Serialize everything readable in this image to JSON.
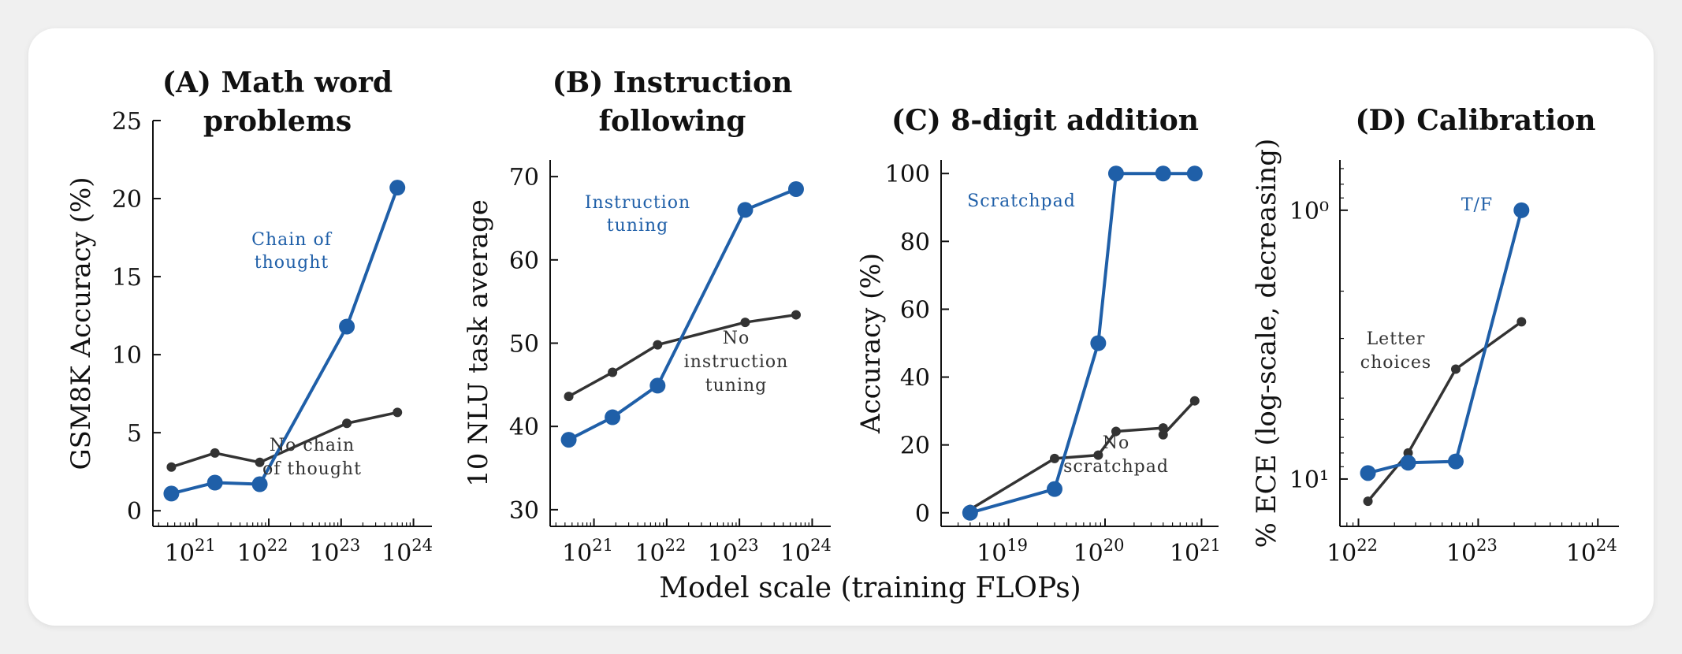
{
  "xlabel": "Model scale (training FLOPs)",
  "chart_data": [
    {
      "type": "line",
      "title": "(A) Math word problems",
      "title_lines": [
        "(A) Math word",
        "problems"
      ],
      "ylabel": "GSM8K Accuracy (%)",
      "xscale": "log",
      "xlim": [
        2.5e+20,
        1.8e+24
      ],
      "ylim": [
        -1,
        25
      ],
      "yticks": [
        0,
        5,
        10,
        15,
        20,
        25
      ],
      "ytick_labels": [
        "0",
        "5",
        "10",
        "15",
        "20",
        "25"
      ],
      "xtick_exps": [
        "21",
        "22",
        "23",
        "24"
      ],
      "series": [
        {
          "name": "Chain of thought",
          "label_lines": [
            "Chain of",
            "thought"
          ],
          "color": "#1f5fa8",
          "x": [
            4.5e+20,
            1.8e+21,
            7.5e+21,
            1.2e+23,
            6e+23
          ],
          "y": [
            1.1,
            1.8,
            1.7,
            11.8,
            20.7
          ]
        },
        {
          "name": "No chain of thought",
          "label_lines": [
            "No chain",
            "of thought"
          ],
          "color": "#333333",
          "x": [
            4.5e+20,
            1.8e+21,
            7.5e+21,
            1.2e+23,
            6e+23
          ],
          "y": [
            2.8,
            3.7,
            3.1,
            5.6,
            6.3
          ]
        }
      ]
    },
    {
      "type": "line",
      "title": "(B) Instruction following",
      "title_lines": [
        "(B) Instruction",
        "following"
      ],
      "ylabel": "10 NLU task average",
      "xscale": "log",
      "xlim": [
        2.5e+20,
        1.8e+24
      ],
      "ylim": [
        28,
        72
      ],
      "yticks": [
        30,
        40,
        50,
        60,
        70
      ],
      "ytick_labels": [
        "30",
        "40",
        "50",
        "60",
        "70"
      ],
      "xtick_exps": [
        "21",
        "22",
        "23",
        "24"
      ],
      "series": [
        {
          "name": "Instruction tuning",
          "label_lines": [
            "Instruction",
            "tuning"
          ],
          "color": "#1f5fa8",
          "x": [
            4.5e+20,
            1.8e+21,
            7.5e+21,
            1.2e+23,
            6e+23
          ],
          "y": [
            38.4,
            41.1,
            44.9,
            66.0,
            68.5
          ]
        },
        {
          "name": "No instruction tuning",
          "label_lines": [
            "No",
            "instruction",
            "tuning"
          ],
          "color": "#333333",
          "x": [
            4.5e+20,
            1.8e+21,
            7.5e+21,
            1.2e+23,
            6e+23
          ],
          "y": [
            43.6,
            46.5,
            49.8,
            52.5,
            53.4
          ]
        }
      ]
    },
    {
      "type": "line",
      "title": "(C) 8-digit addition",
      "title_lines": [
        "(C) 8-digit addition"
      ],
      "ylabel": "Accuracy (%)",
      "xscale": "log",
      "xlim": [
        2e+18,
        1.5e+21
      ],
      "ylim": [
        -4,
        104
      ],
      "yticks": [
        0,
        20,
        40,
        60,
        80,
        100
      ],
      "ytick_labels": [
        "0",
        "20",
        "40",
        "60",
        "80",
        "100"
      ],
      "xtick_exps": [
        "19",
        "20",
        "21"
      ],
      "series": [
        {
          "name": "Scratchpad",
          "label_lines": [
            "Scratchpad"
          ],
          "color": "#1f5fa8",
          "x": [
            4e+18,
            3e+19,
            8.5e+19,
            1.3e+20,
            4e+20,
            8.5e+20
          ],
          "y": [
            0,
            7,
            50,
            100,
            100,
            100
          ]
        },
        {
          "name": "No scratchpad",
          "label_lines": [
            "No",
            "scratchpad"
          ],
          "color": "#333333",
          "x": [
            4e+18,
            3e+19,
            8.5e+19,
            1.3e+20,
            4e+20,
            4e+20,
            8.5e+20
          ],
          "y": [
            1,
            16,
            17,
            24,
            25,
            23,
            33
          ]
        }
      ]
    },
    {
      "type": "line",
      "title": "(D) Calibration",
      "title_lines": [
        "(D) Calibration"
      ],
      "ylabel": "% ECE (log-scale, decreasing)",
      "xscale": "log",
      "yscale": "log",
      "yinverted": true,
      "xlim": [
        7e+21,
        1.5e+24
      ],
      "ylim": [
        0.65,
        15
      ],
      "yticks": [
        1,
        10
      ],
      "ytick_labels": [
        "10⁰",
        "10¹"
      ],
      "xtick_exps": [
        "22",
        "23",
        "24"
      ],
      "series": [
        {
          "name": "T/F",
          "label_lines": [
            "T/F"
          ],
          "color": "#1f5fa8",
          "x": [
            1.2e+22,
            2.6e+22,
            6.5e+22,
            2.3e+23
          ],
          "y": [
            9.5,
            8.7,
            8.6,
            1.0
          ]
        },
        {
          "name": "Letter choices",
          "label_lines": [
            "Letter",
            "choices"
          ],
          "color": "#333333",
          "x": [
            1.2e+22,
            2.6e+22,
            6.5e+22,
            2.3e+23
          ],
          "y": [
            12.1,
            8.0,
            3.9,
            2.6
          ]
        }
      ]
    }
  ]
}
